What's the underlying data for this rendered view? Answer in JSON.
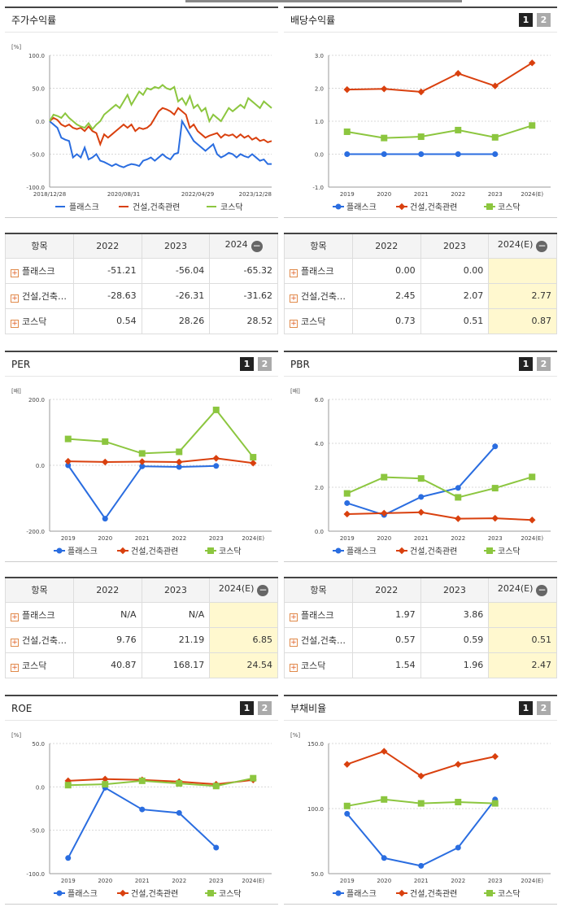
{
  "tabs": {
    "one": "1",
    "two": "2"
  },
  "panels": {
    "stock": {
      "title": "주가수익률"
    },
    "dividend": {
      "title": "배당수익률"
    },
    "per": {
      "title": "PER"
    },
    "pbr": {
      "title": "PBR"
    },
    "roe": {
      "title": "ROE"
    },
    "debt": {
      "title": "부채비율"
    }
  },
  "series_names": [
    "플래스크",
    "건설,건축관련",
    "코스닥"
  ],
  "colors": {
    "plask": "#2a6de0",
    "construction": "#d9400e",
    "kosdaq": "#8cc63f"
  },
  "tables": {
    "stock": {
      "headers": [
        "항목",
        "2022",
        "2023",
        "2024"
      ],
      "rows": [
        {
          "name": "플래스크",
          "v": [
            "-51.21",
            "-56.04",
            "-65.32"
          ]
        },
        {
          "name": "건설,건축관련",
          "v": [
            "-28.63",
            "-26.31",
            "-31.62"
          ]
        },
        {
          "name": "코스닥",
          "v": [
            "0.54",
            "28.26",
            "28.52"
          ]
        }
      ]
    },
    "dividend": {
      "headers": [
        "항목",
        "2022",
        "2023",
        "2024(E)"
      ],
      "rows": [
        {
          "name": "플래스크",
          "v": [
            "0.00",
            "0.00",
            ""
          ]
        },
        {
          "name": "건설,건축관련",
          "v": [
            "2.45",
            "2.07",
            "2.77"
          ]
        },
        {
          "name": "코스닥",
          "v": [
            "0.73",
            "0.51",
            "0.87"
          ]
        }
      ]
    },
    "per": {
      "headers": [
        "항목",
        "2022",
        "2023",
        "2024(E)"
      ],
      "rows": [
        {
          "name": "플래스크",
          "v": [
            "N/A",
            "N/A",
            ""
          ]
        },
        {
          "name": "건설,건축관련",
          "v": [
            "9.76",
            "21.19",
            "6.85"
          ]
        },
        {
          "name": "코스닥",
          "v": [
            "40.87",
            "168.17",
            "24.54"
          ]
        }
      ]
    },
    "pbr": {
      "headers": [
        "항목",
        "2022",
        "2023",
        "2024(E)"
      ],
      "rows": [
        {
          "name": "플래스크",
          "v": [
            "1.97",
            "3.86",
            ""
          ]
        },
        {
          "name": "건설,건축관련",
          "v": [
            "0.57",
            "0.59",
            "0.51"
          ]
        },
        {
          "name": "코스닥",
          "v": [
            "1.54",
            "1.96",
            "2.47"
          ]
        }
      ]
    }
  },
  "chart_data": [
    {
      "id": "stock",
      "type": "line",
      "unit": "[%]",
      "ylim": [
        -100,
        100
      ],
      "yticks": [
        "100.0",
        "50.0",
        "0.0",
        "-50.0",
        "-100.0"
      ],
      "xticklabels": [
        "2018/12/28",
        "2020/08/31",
        "2022/04/29",
        "2023/12/28"
      ],
      "series": [
        {
          "name": "플래스크",
          "values": [
            0,
            -5,
            -10,
            -25,
            -28,
            -30,
            -55,
            -50,
            -55,
            -40,
            -58,
            -55,
            -50,
            -60,
            -62,
            -65,
            -68,
            -65,
            -68,
            -70,
            -67,
            -65,
            -66,
            -68,
            -60,
            -58,
            -55,
            -60,
            -55,
            -50,
            -55,
            -58,
            -50,
            -48,
            0,
            -10,
            -20,
            -30,
            -35,
            -40,
            -45,
            -40,
            -35,
            -50,
            -55,
            -52,
            -48,
            -50,
            -55,
            -50,
            -53,
            -55,
            -50,
            -55,
            -60,
            -58,
            -65,
            -65
          ]
        },
        {
          "name": "건설,건축관련",
          "values": [
            0,
            5,
            2,
            -5,
            -8,
            -5,
            -10,
            -12,
            -10,
            -15,
            -8,
            -15,
            -18,
            -35,
            -20,
            -25,
            -20,
            -15,
            -10,
            -5,
            -10,
            -5,
            -15,
            -10,
            -12,
            -10,
            -5,
            5,
            15,
            20,
            18,
            15,
            10,
            20,
            15,
            10,
            -10,
            -5,
            -15,
            -20,
            -25,
            -22,
            -20,
            -18,
            -25,
            -20,
            -22,
            -20,
            -25,
            -20,
            -25,
            -22,
            -28,
            -25,
            -30,
            -28,
            -32,
            -30
          ]
        },
        {
          "name": "코스닥",
          "values": [
            0,
            10,
            8,
            5,
            12,
            5,
            0,
            -5,
            -8,
            -10,
            -3,
            -12,
            -5,
            0,
            10,
            15,
            20,
            25,
            20,
            30,
            40,
            25,
            35,
            45,
            40,
            50,
            48,
            52,
            50,
            55,
            50,
            48,
            52,
            30,
            35,
            25,
            38,
            20,
            25,
            15,
            20,
            0,
            10,
            5,
            0,
            10,
            20,
            15,
            20,
            25,
            20,
            35,
            30,
            25,
            20,
            30,
            25,
            20
          ]
        }
      ]
    },
    {
      "id": "dividend",
      "type": "line",
      "unit": "",
      "ylim": [
        -1,
        3
      ],
      "yticks": [
        "3.0",
        "2.0",
        "1.0",
        "0.0",
        "-1.0"
      ],
      "categories": [
        "2019",
        "2020",
        "2021",
        "2022",
        "2023",
        "2024(E)"
      ],
      "series": [
        {
          "name": "플래스크",
          "values": [
            0.0,
            0.0,
            0.0,
            0.0,
            0.0,
            null
          ]
        },
        {
          "name": "건설,건축관련",
          "values": [
            1.96,
            1.98,
            1.89,
            2.45,
            2.07,
            2.77
          ]
        },
        {
          "name": "코스닥",
          "values": [
            0.68,
            0.49,
            0.53,
            0.73,
            0.51,
            0.87
          ]
        }
      ]
    },
    {
      "id": "per",
      "type": "line",
      "unit": "[배]",
      "ylim": [
        -200,
        200
      ],
      "yticks": [
        "200.0",
        "0.0",
        "-200.0"
      ],
      "categories": [
        "2019",
        "2020",
        "2021",
        "2022",
        "2023",
        "2024(E)"
      ],
      "series": [
        {
          "name": "플래스크",
          "values": [
            0,
            -162,
            -3,
            -5,
            -2,
            null
          ]
        },
        {
          "name": "건설,건축관련",
          "values": [
            12,
            10,
            11,
            9.76,
            21.19,
            6.85
          ]
        },
        {
          "name": "코스닥",
          "values": [
            80,
            72,
            36,
            40.87,
            168.17,
            24.54
          ]
        }
      ]
    },
    {
      "id": "pbr",
      "type": "line",
      "unit": "[배]",
      "ylim": [
        0,
        6
      ],
      "yticks": [
        "6.0",
        "4.0",
        "2.0",
        "0.0"
      ],
      "categories": [
        "2019",
        "2020",
        "2021",
        "2022",
        "2023",
        "2024(E)"
      ],
      "series": [
        {
          "name": "플래스크",
          "values": [
            1.28,
            0.74,
            1.56,
            1.97,
            3.86,
            null
          ]
        },
        {
          "name": "건설,건축관련",
          "values": [
            0.78,
            0.82,
            0.86,
            0.57,
            0.59,
            0.51
          ]
        },
        {
          "name": "코스닥",
          "values": [
            1.72,
            2.46,
            2.4,
            1.54,
            1.96,
            2.47
          ]
        }
      ]
    },
    {
      "id": "roe",
      "type": "line",
      "unit": "[%]",
      "ylim": [
        -100,
        50
      ],
      "yticks": [
        "50.0",
        "0.0",
        "-50.0",
        "-100.0"
      ],
      "categories": [
        "2019",
        "2020",
        "2021",
        "2022",
        "2023",
        "2024(E)"
      ],
      "series": [
        {
          "name": "플래스크",
          "values": [
            -82,
            -1,
            -26,
            -30,
            -70,
            null
          ]
        },
        {
          "name": "건설,건축관련",
          "values": [
            7,
            9,
            8,
            6,
            3,
            8
          ]
        },
        {
          "name": "코스닥",
          "values": [
            2,
            3,
            7,
            4,
            1,
            10
          ]
        }
      ]
    },
    {
      "id": "debt",
      "type": "line",
      "unit": "[%]",
      "ylim": [
        50,
        150
      ],
      "yticks": [
        "150.0",
        "100.0",
        "50.0"
      ],
      "categories": [
        "2019",
        "2020",
        "2021",
        "2022",
        "2023",
        "2024(E)"
      ],
      "series": [
        {
          "name": "플래스크",
          "values": [
            96,
            62,
            56,
            70,
            107,
            null
          ]
        },
        {
          "name": "건설,건축관련",
          "values": [
            134,
            144,
            125,
            134,
            140,
            null
          ]
        },
        {
          "name": "코스닥",
          "values": [
            102,
            107,
            104,
            105,
            104,
            null
          ]
        }
      ]
    }
  ]
}
